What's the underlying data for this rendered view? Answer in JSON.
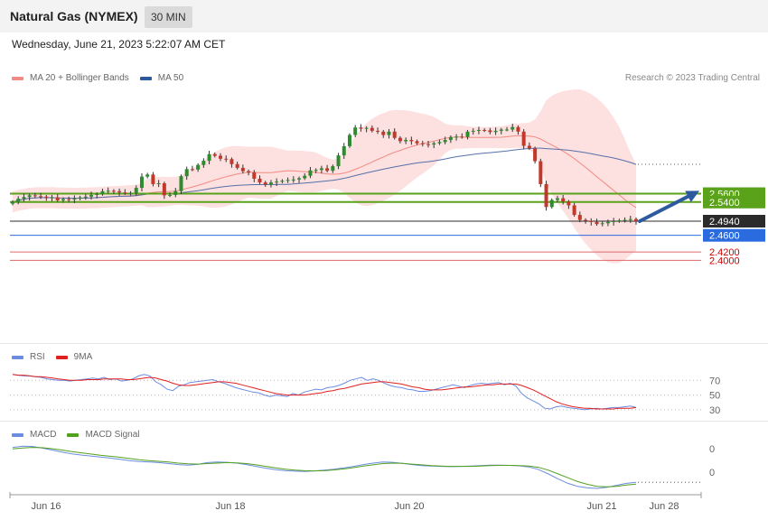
{
  "header": {
    "instrument": "Natural Gas (NYMEX)",
    "interval": "30 MIN"
  },
  "datetime": "Wednesday, June 21, 2023 5:22:07 AM CET",
  "credit": "Research © 2023 Trading Central",
  "legends": {
    "main": [
      {
        "label": "MA 20 + Bollinger Bands",
        "color": "#f08a82"
      },
      {
        "label": "MA 50",
        "color": "#2d5a9e"
      }
    ],
    "rsi": [
      {
        "label": "RSI",
        "color": "#6b8ce0"
      },
      {
        "label": "9MA",
        "color": "#e0201e"
      }
    ],
    "macd": [
      {
        "label": "MACD",
        "color": "#6b8ce0"
      },
      {
        "label": "MACD Signal",
        "color": "#52a01e"
      }
    ]
  },
  "chart_data": {
    "type": "candlestick",
    "price_axis": {
      "min": 2.21,
      "max": 2.83
    },
    "levels": [
      {
        "label": "2.5600",
        "value": 2.56,
        "color": "#5aa21a",
        "text_color": "#ffffff",
        "style": "box"
      },
      {
        "label": "2.5400",
        "value": 2.54,
        "color": "#5aa21a",
        "text_color": "#ffffff",
        "style": "box"
      },
      {
        "label": "2.4940",
        "value": 2.494,
        "color": "#2b2b2b",
        "text_color": "#ffffff",
        "style": "box"
      },
      {
        "label": "2.4600",
        "value": 2.46,
        "color": "#2a6cdf",
        "text_color": "#ffffff",
        "style": "box"
      },
      {
        "label": "2.4200",
        "value": 2.42,
        "color": "#e06a6a",
        "text_color": "#cc0000",
        "style": "text"
      },
      {
        "label": "2.4000",
        "value": 2.4,
        "color": "#e06a6a",
        "text_color": "#cc0000",
        "style": "text"
      }
    ],
    "x_ticks": [
      "Jun 16",
      "Jun 18",
      "Jun 20",
      "Jun 21",
      "Jun 28"
    ],
    "closes": [
      2.54,
      2.548,
      2.552,
      2.556,
      2.554,
      2.553,
      2.55,
      2.551,
      2.544,
      2.547,
      2.546,
      2.548,
      2.551,
      2.553,
      2.557,
      2.559,
      2.566,
      2.567,
      2.566,
      2.563,
      2.561,
      2.562,
      2.574,
      2.601,
      2.606,
      2.583,
      2.585,
      2.556,
      2.557,
      2.566,
      2.602,
      2.619,
      2.618,
      2.629,
      2.639,
      2.655,
      2.651,
      2.644,
      2.643,
      2.631,
      2.622,
      2.614,
      2.611,
      2.596,
      2.587,
      2.582,
      2.587,
      2.589,
      2.591,
      2.593,
      2.594,
      2.597,
      2.603,
      2.616,
      2.617,
      2.621,
      2.615,
      2.626,
      2.652,
      2.674,
      2.701,
      2.719,
      2.716,
      2.718,
      2.711,
      2.709,
      2.701,
      2.709,
      2.694,
      2.686,
      2.689,
      2.686,
      2.681,
      2.679,
      2.678,
      2.681,
      2.684,
      2.689,
      2.696,
      2.697,
      2.696,
      2.709,
      2.711,
      2.713,
      2.712,
      2.708,
      2.711,
      2.714,
      2.714,
      2.72,
      2.709,
      2.675,
      2.669,
      2.638,
      2.583,
      2.528,
      2.545,
      2.549,
      2.541,
      2.532,
      2.509,
      2.497,
      2.495,
      2.492,
      2.487,
      2.489,
      2.492,
      2.494,
      2.496,
      2.497,
      2.499,
      2.494
    ],
    "rsi": {
      "ticks": [
        70,
        50,
        30
      ],
      "min": 20,
      "max": 90,
      "values": [
        78,
        77,
        76,
        76,
        75,
        74,
        72,
        71,
        70,
        70,
        69,
        70,
        71,
        72,
        73,
        72,
        74,
        71,
        72,
        69,
        70,
        72,
        76,
        78,
        76,
        68,
        64,
        58,
        56,
        62,
        64,
        67,
        68,
        69,
        70,
        71,
        68,
        66,
        63,
        60,
        58,
        56,
        54,
        53,
        50,
        48,
        50,
        49,
        48,
        52,
        50,
        54,
        56,
        58,
        57,
        60,
        61,
        63,
        66,
        70,
        72,
        74,
        70,
        72,
        70,
        66,
        63,
        61,
        60,
        58,
        57,
        55,
        55,
        56,
        58,
        60,
        62,
        64,
        62,
        60,
        63,
        65,
        66,
        65,
        66,
        67,
        64,
        66,
        62,
        52,
        46,
        42,
        38,
        32,
        31,
        34,
        35,
        33,
        32,
        31,
        30,
        31,
        32,
        31,
        32,
        33,
        33,
        34,
        35,
        33
      ],
      "ma": [
        78,
        77,
        77,
        76,
        75,
        75,
        74,
        73,
        72,
        71,
        70,
        70,
        70,
        71,
        71,
        71,
        72,
        72,
        72,
        72,
        71,
        71,
        72,
        73,
        74,
        73,
        71,
        69,
        66,
        64,
        63,
        63,
        64,
        65,
        66,
        67,
        68,
        68,
        67,
        66,
        64,
        62,
        60,
        58,
        56,
        54,
        52,
        51,
        50,
        50,
        50,
        50,
        51,
        52,
        53,
        55,
        56,
        58,
        59,
        61,
        63,
        65,
        66,
        67,
        68,
        68,
        67,
        66,
        65,
        63,
        61,
        60,
        58,
        57,
        57,
        57,
        58,
        59,
        60,
        61,
        61,
        62,
        63,
        64,
        64,
        65,
        65,
        65,
        65,
        63,
        60,
        57,
        53,
        49,
        45,
        41,
        38,
        36,
        34,
        33,
        32,
        32,
        31,
        31,
        31,
        31,
        32,
        32,
        32,
        33
      ]
    },
    "macd": {
      "ticks": [
        0,
        0
      ],
      "min": -1,
      "max": 1,
      "macd": [
        0.8,
        0.85,
        0.84,
        0.78,
        0.7,
        0.62,
        0.55,
        0.5,
        0.46,
        0.42,
        0.38,
        0.33,
        0.28,
        0.24,
        0.22,
        0.2,
        0.16,
        0.12,
        0.1,
        0.13,
        0.2,
        0.22,
        0.21,
        0.18,
        0.12,
        0.05,
        -0.02,
        -0.08,
        -0.12,
        -0.14,
        -0.15,
        -0.13,
        -0.1,
        -0.06,
        -0.01,
        0.05,
        0.12,
        0.18,
        0.22,
        0.21,
        0.17,
        0.12,
        0.08,
        0.06,
        0.05,
        0.04,
        0.05,
        0.06,
        0.08,
        0.1,
        0.1,
        0.09,
        0.07,
        0.03,
        -0.08,
        -0.25,
        -0.45,
        -0.62,
        -0.74,
        -0.8,
        -0.82,
        -0.78,
        -0.7,
        -0.62,
        -0.58
      ],
      "signal": [
        0.74,
        0.78,
        0.8,
        0.79,
        0.75,
        0.7,
        0.64,
        0.59,
        0.54,
        0.49,
        0.45,
        0.41,
        0.36,
        0.31,
        0.28,
        0.25,
        0.22,
        0.18,
        0.15,
        0.14,
        0.16,
        0.18,
        0.2,
        0.19,
        0.16,
        0.11,
        0.05,
        -0.01,
        -0.06,
        -0.1,
        -0.12,
        -0.13,
        -0.12,
        -0.09,
        -0.05,
        0.0,
        0.06,
        0.11,
        0.16,
        0.18,
        0.17,
        0.14,
        0.11,
        0.08,
        0.06,
        0.05,
        0.05,
        0.05,
        0.06,
        0.08,
        0.09,
        0.09,
        0.08,
        0.06,
        0.01,
        -0.1,
        -0.25,
        -0.4,
        -0.55,
        -0.66,
        -0.74,
        -0.76,
        -0.74,
        -0.69,
        -0.65
      ]
    }
  }
}
